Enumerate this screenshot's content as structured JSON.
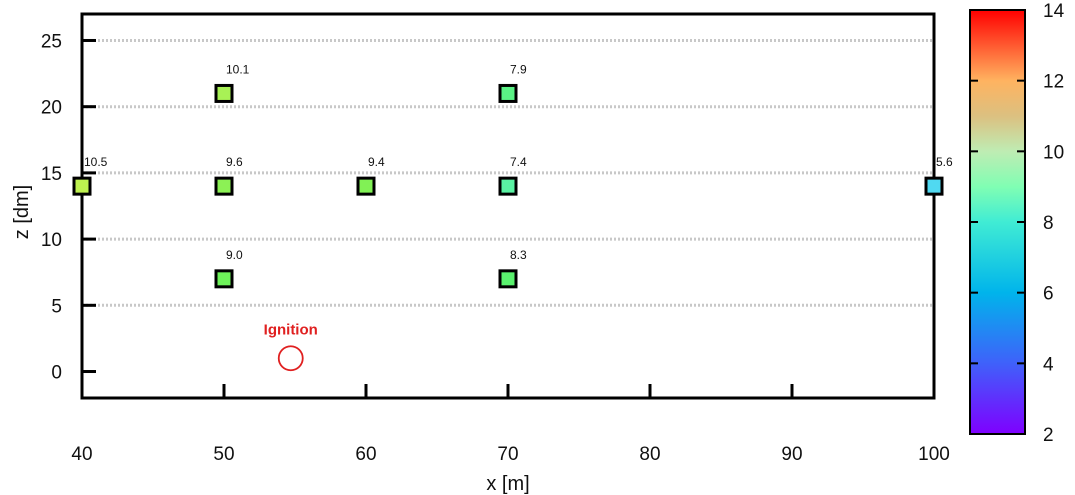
{
  "chart_data": {
    "type": "scatter",
    "xlabel": "x [m]",
    "ylabel": "z [dm]",
    "xlim": [
      40,
      100
    ],
    "ylim": [
      -2,
      27
    ],
    "xticks": [
      40,
      50,
      60,
      70,
      80,
      90,
      100
    ],
    "yticks": [
      0,
      5,
      10,
      15,
      20,
      25
    ],
    "grid": "horizontal-dotted",
    "points": [
      {
        "x": 40,
        "z": 14,
        "value": 10.5,
        "label": "10.5"
      },
      {
        "x": 50,
        "z": 21,
        "value": 10.1,
        "label": "10.1"
      },
      {
        "x": 50,
        "z": 14,
        "value": 9.6,
        "label": "9.6"
      },
      {
        "x": 50,
        "z": 7,
        "value": 9.0,
        "label": "9.0"
      },
      {
        "x": 60,
        "z": 14,
        "value": 9.4,
        "label": "9.4"
      },
      {
        "x": 70,
        "z": 21,
        "value": 7.9,
        "label": "7.9"
      },
      {
        "x": 70,
        "z": 14,
        "value": 7.4,
        "label": "7.4"
      },
      {
        "x": 70,
        "z": 7,
        "value": 8.3,
        "label": "8.3"
      },
      {
        "x": 100,
        "z": 14,
        "value": 5.6,
        "label": "5.6"
      }
    ],
    "annotation": {
      "text": "Ignition",
      "x": 54.7,
      "z": 1,
      "color": "#e02020"
    },
    "colorbar": {
      "min": 2,
      "max": 14,
      "ticks": [
        2,
        4,
        6,
        8,
        10,
        12,
        14
      ],
      "colormap": "rainbow"
    }
  }
}
